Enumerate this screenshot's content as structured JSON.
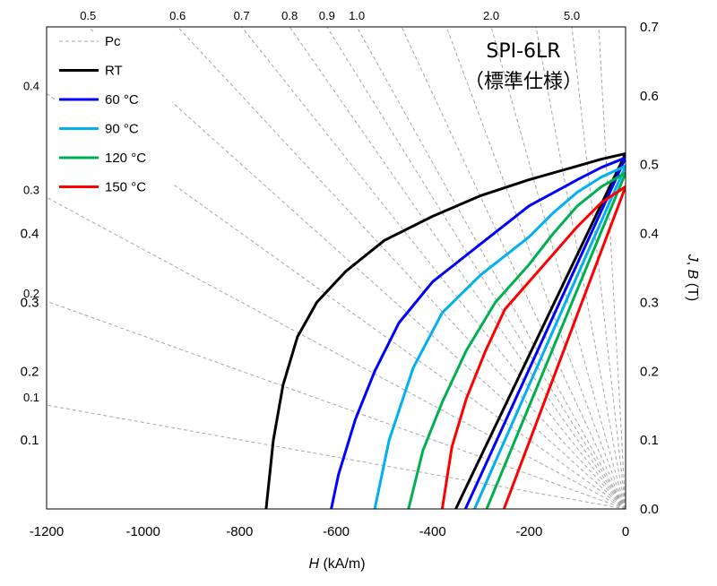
{
  "chart_data": {
    "type": "line",
    "title": "SPI-6LR",
    "subtitle": "（標準仕様）",
    "xlabel_italic": "H",
    "xlabel_unit": " (kA/m)",
    "ylabel_italic_1": "J",
    "ylabel_sep": ", ",
    "ylabel_italic_2": "B",
    "ylabel_unit": " (T)",
    "xlim": [
      -1200,
      0
    ],
    "ylim": [
      0,
      0.7
    ],
    "x_ticks": [
      {
        "value": -1200,
        "label": "-1200"
      },
      {
        "value": -1000,
        "label": "-1000"
      },
      {
        "value": -800,
        "label": "-800"
      },
      {
        "value": -600,
        "label": "-600"
      },
      {
        "value": -400,
        "label": "-400"
      },
      {
        "value": -200,
        "label": "-200"
      },
      {
        "value": 0,
        "label": "0"
      }
    ],
    "y_ticks": [
      {
        "value": 0.0,
        "label": "0.0"
      },
      {
        "value": 0.1,
        "label": "0.1"
      },
      {
        "value": 0.2,
        "label": "0.2"
      },
      {
        "value": 0.3,
        "label": "0.3"
      },
      {
        "value": 0.4,
        "label": "0.4"
      },
      {
        "value": 0.5,
        "label": "0.5"
      },
      {
        "value": 0.6,
        "label": "0.6"
      },
      {
        "value": 0.7,
        "label": "0.7"
      }
    ],
    "left_scale_ticks": [
      {
        "value": 0.1,
        "label": "0.1"
      },
      {
        "value": 0.2,
        "label": "0.2"
      },
      {
        "value": 0.3,
        "label": "0.3"
      },
      {
        "value": 0.4,
        "label": "0.4"
      }
    ],
    "pc_lines": [
      {
        "pc": 0.1,
        "label": "0.1"
      },
      {
        "pc": 0.2,
        "label": "0.2"
      },
      {
        "pc": 0.3,
        "label": "0.3"
      },
      {
        "pc": 0.4,
        "label": "0.4"
      },
      {
        "pc": 0.5,
        "label": "0.5"
      },
      {
        "pc": 0.6,
        "label": "0.6"
      },
      {
        "pc": 0.7,
        "label": "0.7"
      },
      {
        "pc": 0.8,
        "label": "0.8"
      },
      {
        "pc": 0.9,
        "label": "0.9"
      },
      {
        "pc": 1.0,
        "label": "1.0"
      },
      {
        "pc": 1.2,
        "label": ""
      },
      {
        "pc": 1.5,
        "label": ""
      },
      {
        "pc": 2.0,
        "label": "2.0"
      },
      {
        "pc": 3.0,
        "label": ""
      },
      {
        "pc": 5.0,
        "label": "5.0"
      },
      {
        "pc": 10.0,
        "label": ""
      }
    ],
    "pc_style": {
      "color": "#a6a6a6",
      "dash": "4,3"
    },
    "series": [
      {
        "name": "RT",
        "color": "#000000",
        "j_curve": [
          [
            0,
            0.516
          ],
          [
            -50,
            0.508
          ],
          [
            -100,
            0.498
          ],
          [
            -200,
            0.478
          ],
          [
            -300,
            0.455
          ],
          [
            -400,
            0.425
          ],
          [
            -500,
            0.39
          ],
          [
            -580,
            0.345
          ],
          [
            -640,
            0.3
          ],
          [
            -680,
            0.25
          ],
          [
            -710,
            0.18
          ],
          [
            -730,
            0.1
          ],
          [
            -745,
            0.0
          ]
        ],
        "b_line": [
          [
            0,
            0.516
          ],
          [
            -352,
            0.0
          ]
        ]
      },
      {
        "name": "60 °C",
        "color": "#0000ff",
        "j_curve": [
          [
            0,
            0.51
          ],
          [
            -50,
            0.496
          ],
          [
            -100,
            0.478
          ],
          [
            -200,
            0.44
          ],
          [
            -300,
            0.385
          ],
          [
            -400,
            0.33
          ],
          [
            -470,
            0.27
          ],
          [
            -520,
            0.2
          ],
          [
            -560,
            0.13
          ],
          [
            -595,
            0.05
          ],
          [
            -610,
            0.0
          ]
        ],
        "b_line": [
          [
            0,
            0.51
          ],
          [
            -332,
            0.0
          ]
        ]
      },
      {
        "name": "90 °C",
        "color": "#00b0f0",
        "j_curve": [
          [
            0,
            0.498
          ],
          [
            -50,
            0.482
          ],
          [
            -100,
            0.46
          ],
          [
            -150,
            0.43
          ],
          [
            -200,
            0.395
          ],
          [
            -300,
            0.34
          ],
          [
            -380,
            0.285
          ],
          [
            -440,
            0.205
          ],
          [
            -490,
            0.1
          ],
          [
            -520,
            0.0
          ]
        ],
        "b_line": [
          [
            0,
            0.498
          ],
          [
            -313,
            0.0
          ]
        ]
      },
      {
        "name": "120 °C",
        "color": "#00b050",
        "j_curve": [
          [
            0,
            0.488
          ],
          [
            -50,
            0.468
          ],
          [
            -100,
            0.44
          ],
          [
            -150,
            0.4
          ],
          [
            -200,
            0.355
          ],
          [
            -270,
            0.3
          ],
          [
            -330,
            0.23
          ],
          [
            -380,
            0.155
          ],
          [
            -420,
            0.085
          ],
          [
            -450,
            0.0
          ]
        ],
        "b_line": [
          [
            0,
            0.488
          ],
          [
            -288,
            0.0
          ]
        ]
      },
      {
        "name": "150 °C",
        "color": "#ff0000",
        "j_curve": [
          [
            0,
            0.468
          ],
          [
            -50,
            0.445
          ],
          [
            -100,
            0.41
          ],
          [
            -150,
            0.37
          ],
          [
            -200,
            0.33
          ],
          [
            -250,
            0.29
          ],
          [
            -290,
            0.23
          ],
          [
            -330,
            0.16
          ],
          [
            -360,
            0.09
          ],
          [
            -380,
            0.0
          ]
        ],
        "b_line": [
          [
            0,
            0.468
          ],
          [
            -252,
            0.0
          ]
        ]
      }
    ],
    "legend": {
      "placement": "top-left",
      "pc_label": "Pc"
    }
  }
}
